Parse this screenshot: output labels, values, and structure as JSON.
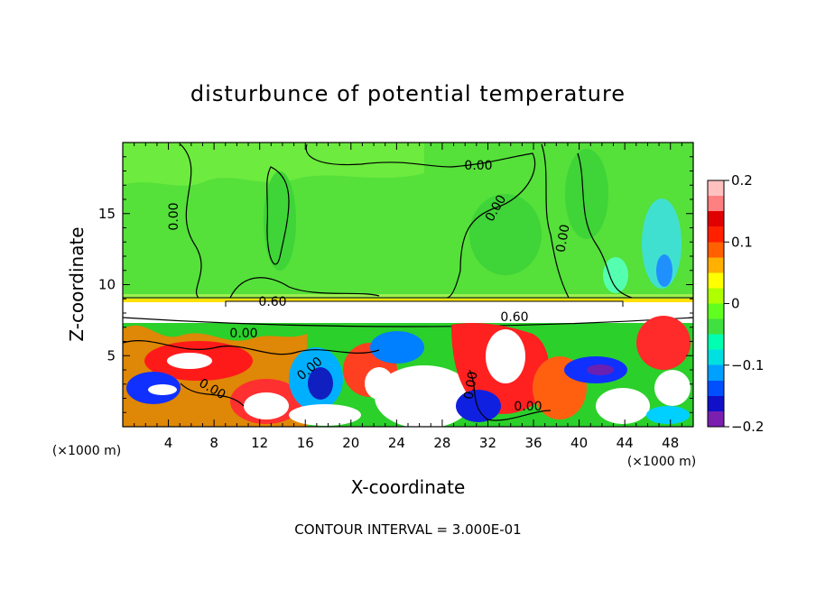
{
  "chart_data": {
    "type": "heatmap",
    "title": "disturbunce of potential temperature",
    "xlabel": "X-coordinate",
    "ylabel": "Z-coordinate",
    "x_unit": "(×1000 m)",
    "x_unit_right": "(×1000 m)",
    "x_ticks": [
      "4",
      "8",
      "12",
      "16",
      "20",
      "24",
      "28",
      "32",
      "36",
      "40",
      "44",
      "48"
    ],
    "x_tick_values": [
      4,
      8,
      12,
      16,
      20,
      24,
      28,
      32,
      36,
      40,
      44,
      48
    ],
    "y_ticks": [
      "5",
      "10",
      "15"
    ],
    "y_tick_values": [
      5,
      10,
      15
    ],
    "xlim": [
      0,
      50
    ],
    "ylim": [
      0,
      20
    ],
    "colorbar": {
      "ticks": [
        "0.2",
        "0.1",
        "0",
        "−0.1",
        "−0.2"
      ],
      "tick_values": [
        0.2,
        0.1,
        0,
        -0.1,
        -0.2
      ],
      "range": [
        -0.2,
        0.2
      ],
      "colors": [
        "#7a1fb0",
        "#1010c8",
        "#0050ff",
        "#00a0ff",
        "#00e0e0",
        "#00ffb0",
        "#40e040",
        "#60ff20",
        "#b0ff00",
        "#ffff00",
        "#ffb000",
        "#ff6000",
        "#ff2000",
        "#e00000",
        "#ff8080",
        "#ffc0c0"
      ]
    },
    "contour_labels": [
      "0.00",
      "0.00",
      "0.00",
      "0.00",
      "0.00",
      "0.00",
      "0.60",
      "0.00",
      "0.60",
      "0.00",
      "0.00"
    ],
    "footer": "CONTOUR INTERVAL = 3.000E-01"
  }
}
